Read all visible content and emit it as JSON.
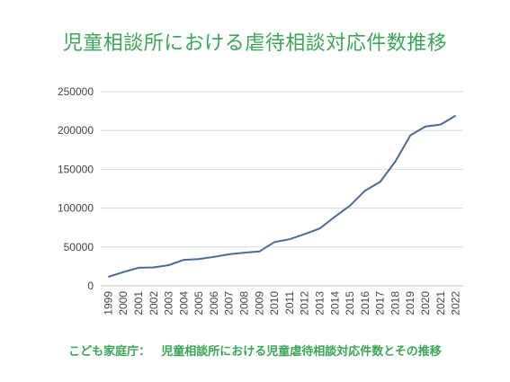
{
  "title": "児童相談所における虐待相談対応件数推移",
  "source_label": "こども家庭庁：",
  "source_text": "児童相談所における児童虐待相談対応件数とその推移",
  "colors": {
    "title": "#3aa657",
    "line": "#4a6a9c",
    "grid": "#d9d9d9",
    "axis": "#bfbfbf"
  },
  "chart_data": {
    "type": "line",
    "title": "",
    "xlabel": "",
    "ylabel": "",
    "ylim": [
      0,
      250000
    ],
    "yticks": [
      0,
      50000,
      100000,
      150000,
      200000,
      250000
    ],
    "grid": true,
    "legend": "none",
    "categories": [
      "1999",
      "2000",
      "2001",
      "2002",
      "2003",
      "2004",
      "2005",
      "2006",
      "2007",
      "2008",
      "2009",
      "2010",
      "2011",
      "2012",
      "2013",
      "2014",
      "2015",
      "2016",
      "2017",
      "2018",
      "2019",
      "2020",
      "2021",
      "2022"
    ],
    "series": [
      {
        "values": [
          11631,
          17725,
          23274,
          23738,
          26569,
          33408,
          34472,
          37323,
          40639,
          42664,
          44211,
          56384,
          59919,
          66701,
          73802,
          88931,
          103286,
          122575,
          133778,
          159838,
          193780,
          205044,
          207660,
          219170
        ]
      }
    ]
  }
}
